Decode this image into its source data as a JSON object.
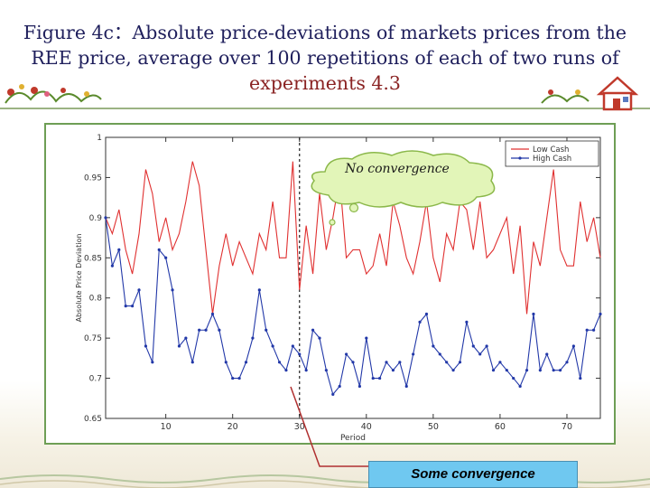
{
  "slide": {
    "title_main": "Figure 4c：Absolute price-deviations of markets  prices from the REE price, average over 100 repetitions of each of two runs of ",
    "title_accent": "experiments 4.3",
    "callout_no_convergence": "No convergence",
    "callout_some_convergence": "Some convergence",
    "icons": [
      "home-icon",
      "flower-border-decoration"
    ]
  },
  "chart_data": {
    "type": "line",
    "xlabel": "Period",
    "ylabel": "Absolute Price Deviation",
    "xlim": [
      1,
      75
    ],
    "ylim": [
      0.65,
      1.0
    ],
    "xticks": [
      10,
      20,
      30,
      40,
      50,
      60,
      70
    ],
    "yticks": [
      0.65,
      0.7,
      0.75,
      0.8,
      0.85,
      0.9,
      0.95,
      1
    ],
    "grid": false,
    "vertical_marker_x": 30,
    "legend_position": "top-right",
    "colors": {
      "low_cash": "#e03030",
      "high_cash": "#2238a8"
    },
    "x": [
      1,
      2,
      3,
      4,
      5,
      6,
      7,
      8,
      9,
      10,
      11,
      12,
      13,
      14,
      15,
      16,
      17,
      18,
      19,
      20,
      21,
      22,
      23,
      24,
      25,
      26,
      27,
      28,
      29,
      30,
      31,
      32,
      33,
      34,
      35,
      36,
      37,
      38,
      39,
      40,
      41,
      42,
      43,
      44,
      45,
      46,
      47,
      48,
      49,
      50,
      51,
      52,
      53,
      54,
      55,
      56,
      57,
      58,
      59,
      60,
      61,
      62,
      63,
      64,
      65,
      66,
      67,
      68,
      69,
      70,
      71,
      72,
      73,
      74,
      75
    ],
    "series": [
      {
        "name": "Low Cash",
        "values": [
          0.9,
          0.88,
          0.91,
          0.86,
          0.83,
          0.88,
          0.96,
          0.93,
          0.87,
          0.9,
          0.86,
          0.88,
          0.92,
          0.97,
          0.94,
          0.86,
          0.78,
          0.84,
          0.88,
          0.84,
          0.87,
          0.85,
          0.83,
          0.88,
          0.86,
          0.92,
          0.85,
          0.85,
          0.97,
          0.81,
          0.89,
          0.83,
          0.93,
          0.86,
          0.9,
          0.95,
          0.85,
          0.86,
          0.86,
          0.83,
          0.84,
          0.88,
          0.84,
          0.92,
          0.89,
          0.85,
          0.83,
          0.87,
          0.92,
          0.85,
          0.82,
          0.88,
          0.86,
          0.92,
          0.91,
          0.86,
          0.92,
          0.85,
          0.86,
          0.88,
          0.9,
          0.83,
          0.89,
          0.78,
          0.87,
          0.84,
          0.9,
          0.96,
          0.86,
          0.84,
          0.84,
          0.92,
          0.87,
          0.9,
          0.85
        ]
      },
      {
        "name": "High Cash",
        "values": [
          0.9,
          0.84,
          0.86,
          0.79,
          0.79,
          0.81,
          0.74,
          0.72,
          0.86,
          0.85,
          0.81,
          0.74,
          0.75,
          0.72,
          0.76,
          0.76,
          0.78,
          0.76,
          0.72,
          0.7,
          0.7,
          0.72,
          0.75,
          0.81,
          0.76,
          0.74,
          0.72,
          0.71,
          0.74,
          0.73,
          0.71,
          0.76,
          0.75,
          0.71,
          0.68,
          0.69,
          0.73,
          0.72,
          0.69,
          0.75,
          0.7,
          0.7,
          0.72,
          0.71,
          0.72,
          0.69,
          0.73,
          0.77,
          0.78,
          0.74,
          0.73,
          0.72,
          0.71,
          0.72,
          0.77,
          0.74,
          0.73,
          0.74,
          0.71,
          0.72,
          0.71,
          0.7,
          0.69,
          0.71,
          0.78,
          0.71,
          0.73,
          0.71,
          0.71,
          0.72,
          0.74,
          0.7,
          0.76,
          0.76,
          0.78
        ]
      }
    ]
  }
}
